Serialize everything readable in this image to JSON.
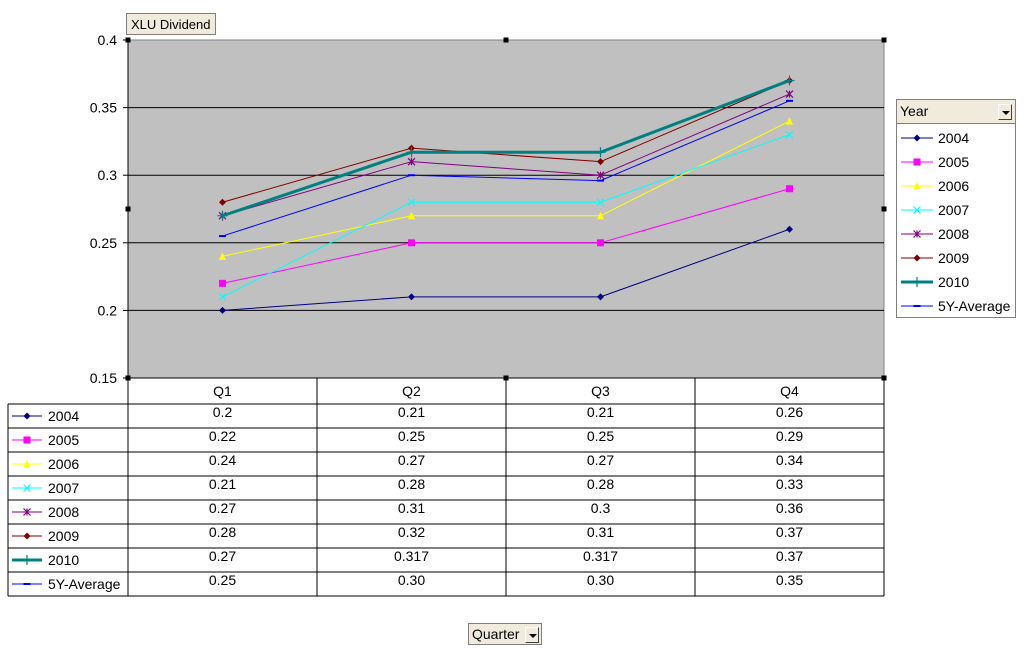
{
  "title": "XLU Dividend",
  "legend_title": "Year",
  "axis_field": "Quarter",
  "chart_data": {
    "type": "line",
    "title": "XLU Dividend",
    "categories": [
      "Q1",
      "Q2",
      "Q3",
      "Q4"
    ],
    "ylim": [
      0.15,
      0.4
    ],
    "yticks": [
      0.15,
      0.2,
      0.25,
      0.3,
      0.35,
      0.4
    ],
    "ytick_labels": [
      "0.15",
      "0.2",
      "0.25",
      "0.3",
      "0.35",
      "0.4"
    ],
    "grid": true,
    "legend_position": "right",
    "background": "#c0c0c0",
    "series": [
      {
        "name": "2004",
        "values": [
          0.2,
          0.21,
          0.21,
          0.26
        ],
        "labels": [
          "0.2",
          "0.21",
          "0.21",
          "0.26"
        ],
        "color": "#000080",
        "marker": "diamond",
        "width": 1
      },
      {
        "name": "2005",
        "values": [
          0.22,
          0.25,
          0.25,
          0.29
        ],
        "labels": [
          "0.22",
          "0.25",
          "0.25",
          "0.29"
        ],
        "color": "#ff00ff",
        "marker": "square",
        "width": 1
      },
      {
        "name": "2006",
        "values": [
          0.24,
          0.27,
          0.27,
          0.34
        ],
        "labels": [
          "0.24",
          "0.27",
          "0.27",
          "0.34"
        ],
        "color": "#ffff00",
        "marker": "triangle",
        "width": 1
      },
      {
        "name": "2007",
        "values": [
          0.21,
          0.28,
          0.28,
          0.33
        ],
        "labels": [
          "0.21",
          "0.28",
          "0.28",
          "0.33"
        ],
        "color": "#00ffff",
        "marker": "x",
        "width": 1
      },
      {
        "name": "2008",
        "values": [
          0.27,
          0.31,
          0.3,
          0.36
        ],
        "labels": [
          "0.27",
          "0.31",
          "0.3",
          "0.36"
        ],
        "color": "#800080",
        "marker": "star",
        "width": 1
      },
      {
        "name": "2009",
        "values": [
          0.28,
          0.32,
          0.31,
          0.37
        ],
        "labels": [
          "0.28",
          "0.32",
          "0.31",
          "0.37"
        ],
        "color": "#800000",
        "marker": "diamond",
        "width": 1
      },
      {
        "name": "2010",
        "values": [
          0.27,
          0.317,
          0.317,
          0.37
        ],
        "labels": [
          "0.27",
          "0.317",
          "0.317",
          "0.37"
        ],
        "color": "#008080",
        "marker": "plus",
        "width": 3
      },
      {
        "name": "5Y-Average",
        "values": [
          0.255,
          0.3,
          0.296,
          0.355
        ],
        "labels": [
          "0.25",
          "0.30",
          "0.30",
          "0.35"
        ],
        "color": "#0000ff",
        "marker": "dash",
        "width": 1
      }
    ]
  }
}
